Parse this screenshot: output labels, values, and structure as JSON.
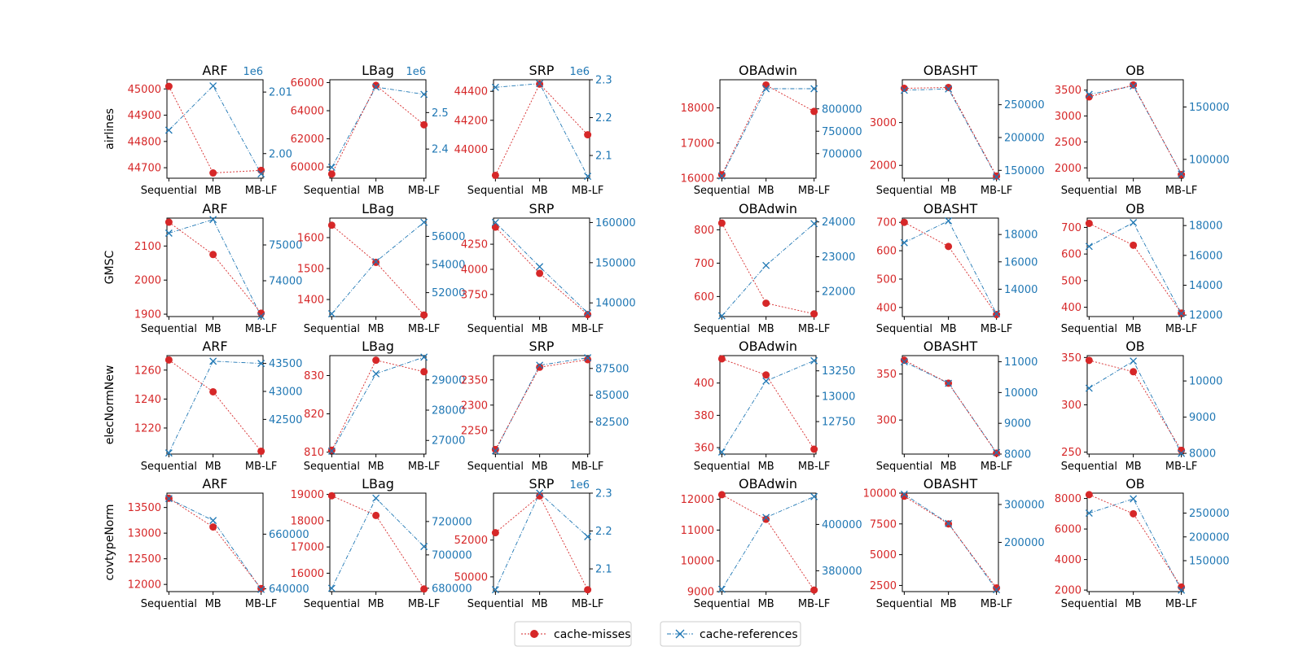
{
  "colors": {
    "misses": "#d62728",
    "references": "#1f77b4",
    "axis": "#000000"
  },
  "legend": {
    "misses_label": "cache-misses",
    "references_label": "cache-references"
  },
  "chart_data": {
    "type": "line",
    "categories": [
      "Sequential",
      "MB",
      "MB-LF"
    ],
    "rows": [
      "airlines",
      "GMSC",
      "elecNormNew",
      "covtypeNorm"
    ],
    "columns": [
      "ARF",
      "LBag",
      "SRP",
      "OBAdwin",
      "OBASHT",
      "OB"
    ],
    "panels": [
      [
        {
          "title": "ARF",
          "misses": [
            45010,
            44680,
            44690
          ],
          "references": [
            2003800,
            2011000,
            1996700
          ],
          "left_ticks": [
            44700,
            44800,
            44900,
            45000
          ],
          "left_range": [
            44660,
            45035
          ],
          "right_ticks": [
            2000000,
            2010000
          ],
          "right_tick_labels": [
            "2.00",
            "2.01"
          ],
          "right_range": [
            1996000,
            2012000
          ],
          "right_multiplier": "1e6"
        },
        {
          "title": "LBag",
          "misses": [
            59500,
            65800,
            63000
          ],
          "references": [
            2350000,
            2570000,
            2550000
          ],
          "left_ticks": [
            60000,
            62000,
            64000,
            66000
          ],
          "left_range": [
            59200,
            66200
          ],
          "right_ticks": [
            2400000,
            2500000
          ],
          "right_tick_labels": [
            "2.4",
            "2.5"
          ],
          "right_range": [
            2320000,
            2590000
          ],
          "right_multiplier": "1e6"
        },
        {
          "title": "SRP",
          "misses": [
            43820,
            44450,
            44100
          ],
          "references": [
            2280000,
            2290000,
            2045000
          ],
          "left_ticks": [
            44000,
            44200,
            44400
          ],
          "left_range": [
            43800,
            44480
          ],
          "right_ticks": [
            2100000,
            2200000,
            2300000
          ],
          "right_tick_labels": [
            "2.1",
            "2.2",
            "2.3"
          ],
          "right_range": [
            2040000,
            2300000
          ],
          "right_multiplier": "1e6"
        },
        {
          "title": "OBAdwin",
          "misses": [
            16100,
            18650,
            17900
          ],
          "references": [
            650000,
            845000,
            845000
          ],
          "left_ticks": [
            16000,
            17000,
            18000
          ],
          "left_range": [
            16000,
            18800
          ],
          "right_ticks": [
            700000,
            750000,
            800000
          ],
          "right_range": [
            645000,
            865000
          ]
        },
        {
          "title": "OBASHT",
          "misses": [
            3800,
            3820,
            1750
          ],
          "references": [
            272000,
            274000,
            140000
          ],
          "left_ticks": [
            2000,
            3000
          ],
          "left_range": [
            1700,
            4000
          ],
          "right_ticks": [
            150000,
            200000,
            250000
          ],
          "right_range": [
            138000,
            288000
          ]
        },
        {
          "title": "OB",
          "misses": [
            3370,
            3600,
            1870
          ],
          "references": [
            162000,
            170000,
            86000
          ],
          "left_ticks": [
            2000,
            2500,
            3000,
            3500
          ],
          "left_range": [
            1800,
            3700
          ],
          "right_ticks": [
            100000,
            150000
          ],
          "right_range": [
            82000,
            176000
          ]
        }
      ],
      [
        {
          "title": "ARF",
          "misses": [
            2170,
            2075,
            1903
          ],
          "references": [
            75330,
            75710,
            73010
          ],
          "left_ticks": [
            1900,
            2000,
            2100
          ],
          "left_range": [
            1893,
            2182
          ],
          "right_ticks": [
            74000,
            75000
          ],
          "right_range": [
            73000,
            75750
          ]
        },
        {
          "title": "LBag",
          "misses": [
            1640,
            1520,
            1350
          ],
          "references": [
            50500,
            54200,
            57000
          ],
          "left_ticks": [
            1400,
            1500,
            1600
          ],
          "left_range": [
            1345,
            1663
          ],
          "right_ticks": [
            52000,
            54000,
            56000
          ],
          "right_range": [
            50300,
            57300
          ]
        },
        {
          "title": "SRP",
          "misses": [
            4420,
            3960,
            3550
          ],
          "references": [
            160000,
            149000,
            137500
          ],
          "left_ticks": [
            3750,
            4000,
            4250
          ],
          "left_range": [
            3530,
            4510
          ],
          "right_ticks": [
            140000,
            150000,
            160000
          ],
          "right_range": [
            136600,
            161100
          ]
        },
        {
          "title": "OBAdwin",
          "misses": [
            820,
            580,
            548
          ],
          "references": [
            21300,
            22750,
            23950
          ],
          "left_ticks": [
            600,
            700,
            800
          ],
          "left_range": [
            540,
            835
          ],
          "right_ticks": [
            22000,
            23000,
            24000
          ],
          "right_range": [
            21280,
            24110
          ]
        },
        {
          "title": "OBASHT",
          "misses": [
            700,
            615,
            375
          ],
          "references": [
            17400,
            19000,
            12200
          ],
          "left_ticks": [
            400,
            500,
            600,
            700
          ],
          "left_range": [
            368,
            715
          ],
          "right_ticks": [
            14000,
            16000,
            18000
          ],
          "right_range": [
            12000,
            19200
          ]
        },
        {
          "title": "OB",
          "misses": [
            715,
            633,
            378
          ],
          "references": [
            16600,
            18200,
            12100
          ],
          "left_ticks": [
            400,
            500,
            600,
            700
          ],
          "left_range": [
            365,
            735
          ],
          "right_ticks": [
            12000,
            14000,
            16000,
            18000
          ],
          "right_range": [
            11900,
            18500
          ]
        }
      ],
      [
        {
          "title": "ARF",
          "misses": [
            1267,
            1245,
            1204
          ],
          "references": [
            41900,
            43540,
            43500
          ],
          "left_ticks": [
            1220,
            1240,
            1260
          ],
          "left_range": [
            1202,
            1270
          ],
          "right_ticks": [
            42500,
            43000,
            43500
          ],
          "right_range": [
            41880,
            43640
          ]
        },
        {
          "title": "LBag",
          "misses": [
            810.5,
            834,
            831
          ],
          "references": [
            26650,
            29200,
            29750
          ],
          "left_ticks": [
            810,
            820,
            830
          ],
          "left_range": [
            809.5,
            835.2
          ],
          "right_ticks": [
            27000,
            28000,
            29000
          ],
          "right_range": [
            26550,
            29800
          ]
        },
        {
          "title": "SRP",
          "misses": [
            2212,
            2375,
            2390
          ],
          "references": [
            79800,
            87800,
            88500
          ],
          "left_ticks": [
            2250,
            2300,
            2350
          ],
          "left_range": [
            2203,
            2398
          ],
          "right_ticks": [
            82500,
            85000,
            87500
          ],
          "right_range": [
            79500,
            88700
          ]
        },
        {
          "title": "OBAdwin",
          "misses": [
            415,
            405,
            359
          ],
          "references": [
            12450,
            13150,
            13350
          ],
          "left_ticks": [
            360,
            380,
            400
          ],
          "left_range": [
            356,
            417
          ],
          "right_ticks": [
            12750,
            13000,
            13250
          ],
          "right_range": [
            12430,
            13400
          ]
        },
        {
          "title": "OBASHT",
          "misses": [
            365,
            340,
            264
          ],
          "references": [
            11000,
            10300,
            8050
          ],
          "left_ticks": [
            300,
            350
          ],
          "left_range": [
            263,
            370
          ],
          "right_ticks": [
            8000,
            9000,
            10000,
            11000
          ],
          "right_range": [
            8000,
            11200
          ]
        },
        {
          "title": "OB",
          "misses": [
            347,
            335,
            252
          ],
          "references": [
            9800,
            10550,
            8000
          ],
          "left_ticks": [
            250,
            300,
            350
          ],
          "left_range": [
            248,
            352
          ],
          "right_ticks": [
            8000,
            9000,
            10000
          ],
          "right_range": [
            7980,
            10700
          ]
        }
      ],
      [
        {
          "title": "ARF",
          "misses": [
            13680,
            13120,
            11920
          ],
          "references": [
            673000,
            665000,
            639800
          ],
          "left_ticks": [
            12000,
            12500,
            13000,
            13500
          ],
          "left_range": [
            11860,
            13780
          ],
          "right_ticks": [
            640000,
            660000
          ],
          "right_range": [
            639000,
            675000
          ]
        },
        {
          "title": "LBag",
          "misses": [
            18950,
            18200,
            15400
          ],
          "references": [
            680000,
            734000,
            705000
          ],
          "left_ticks": [
            16000,
            17000,
            18000,
            19000
          ],
          "left_range": [
            15300,
            19050
          ],
          "right_ticks": [
            680000,
            700000,
            720000
          ],
          "right_range": [
            678000,
            737000
          ]
        },
        {
          "title": "SRP",
          "misses": [
            52400,
            54400,
            49300
          ],
          "references": [
            2045000,
            2300000,
            2185000
          ],
          "left_ticks": [
            50000,
            52000
          ],
          "left_range": [
            49200,
            54550
          ],
          "right_ticks": [
            2100000,
            2200000,
            2300000
          ],
          "right_range": [
            2040000,
            2300000
          ],
          "right_tick_labels": [
            "2.1",
            "2.2",
            "2.3"
          ],
          "right_multiplier": "1e6"
        },
        {
          "title": "OBAdwin",
          "misses": [
            12150,
            11350,
            9050
          ],
          "references": [
            372000,
            403000,
            412000
          ],
          "left_ticks": [
            9000,
            10000,
            11000,
            12000
          ],
          "left_range": [
            9000,
            12200
          ],
          "right_ticks": [
            380000,
            400000
          ],
          "right_range": [
            371000,
            413500
          ]
        },
        {
          "title": "OBASHT",
          "misses": [
            9750,
            7500,
            2300
          ],
          "references": [
            327000,
            250000,
            75000
          ],
          "left_ticks": [
            2500,
            5000,
            7500,
            10000
          ],
          "left_range": [
            2000,
            10000
          ],
          "right_ticks": [
            200000,
            300000
          ],
          "right_range": [
            70000,
            330000
          ]
        },
        {
          "title": "OB",
          "misses": [
            8250,
            7000,
            2200
          ],
          "references": [
            250000,
            280000,
            88000
          ],
          "left_ticks": [
            2000,
            4000,
            6000,
            8000
          ],
          "left_range": [
            1900,
            8350
          ],
          "right_ticks": [
            150000,
            200000,
            250000
          ],
          "right_range": [
            85000,
            292000
          ]
        }
      ]
    ]
  }
}
